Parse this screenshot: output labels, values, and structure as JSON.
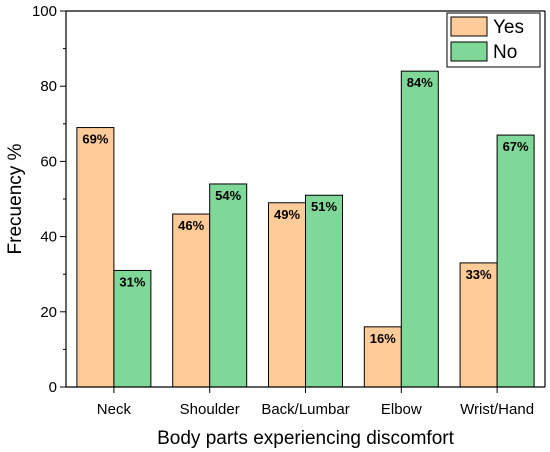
{
  "chart_data": {
    "type": "bar",
    "categories": [
      "Neck",
      "Shoulder",
      "Back/Lumbar",
      "Elbow",
      "Wrist/Hand"
    ],
    "series": [
      {
        "name": "Yes",
        "color": "#FFCC99",
        "values": [
          69,
          46,
          49,
          16,
          33
        ],
        "labels": [
          "69%",
          "46%",
          "49%",
          "16%",
          "33%"
        ]
      },
      {
        "name": "No",
        "color": "#7FD898",
        "values": [
          31,
          54,
          51,
          84,
          67
        ],
        "labels": [
          "31%",
          "54%",
          "51%",
          "84%",
          "67%"
        ]
      }
    ],
    "title": "",
    "xlabel": "Body parts experiencing discomfort",
    "ylabel": "Frecuency %",
    "ylim": [
      0,
      100
    ],
    "yticks": [
      0,
      20,
      40,
      60,
      80,
      100
    ],
    "grid": false,
    "legend_position": "top-right"
  }
}
